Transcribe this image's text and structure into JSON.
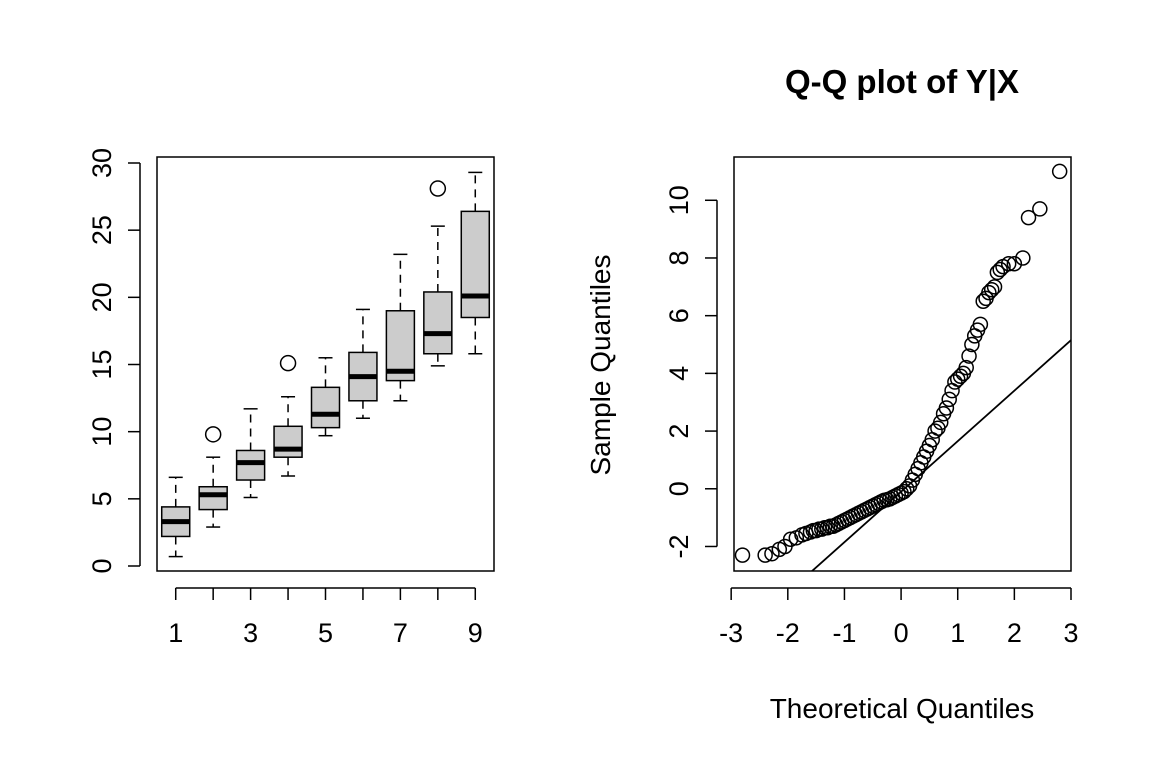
{
  "chart_data": [
    {
      "type": "boxplot",
      "title": "",
      "xlabel": "",
      "ylabel": "",
      "xlim": [
        0.5,
        9.5
      ],
      "ylim": [
        0,
        30
      ],
      "x_ticks": [
        "1",
        "3",
        "5",
        "7",
        "9"
      ],
      "y_ticks": [
        "0",
        "5",
        "10",
        "15",
        "20",
        "25",
        "30"
      ],
      "box_fill": "#cccccc",
      "groups": [
        {
          "category": "1",
          "whisker_low": 0.7,
          "q1": 2.2,
          "median": 3.3,
          "q3": 4.4,
          "whisker_high": 6.6,
          "outliers": []
        },
        {
          "category": "2",
          "whisker_low": 2.9,
          "q1": 4.2,
          "median": 5.3,
          "q3": 5.9,
          "whisker_high": 8.1,
          "outliers": [
            9.8
          ]
        },
        {
          "category": "3",
          "whisker_low": 5.1,
          "q1": 6.4,
          "median": 7.7,
          "q3": 8.6,
          "whisker_high": 11.7,
          "outliers": []
        },
        {
          "category": "4",
          "whisker_low": 6.7,
          "q1": 8.1,
          "median": 8.7,
          "q3": 10.4,
          "whisker_high": 12.6,
          "outliers": [
            15.1
          ]
        },
        {
          "category": "5",
          "whisker_low": 9.7,
          "q1": 10.3,
          "median": 11.3,
          "q3": 13.3,
          "whisker_high": 15.5,
          "outliers": []
        },
        {
          "category": "6",
          "whisker_low": 11.0,
          "q1": 12.3,
          "median": 14.1,
          "q3": 15.9,
          "whisker_high": 19.1,
          "outliers": []
        },
        {
          "category": "7",
          "whisker_low": 12.3,
          "q1": 13.8,
          "median": 14.5,
          "q3": 19.0,
          "whisker_high": 23.2,
          "outliers": []
        },
        {
          "category": "8",
          "whisker_low": 14.9,
          "q1": 15.8,
          "median": 17.3,
          "q3": 20.4,
          "whisker_high": 25.3,
          "outliers": [
            28.1
          ]
        },
        {
          "category": "9",
          "whisker_low": 15.8,
          "q1": 18.5,
          "median": 20.1,
          "q3": 26.4,
          "whisker_high": 29.3,
          "outliers": []
        }
      ]
    },
    {
      "type": "scatter",
      "title": "Q-Q plot of Y|X",
      "xlabel": "Theoretical Quantiles",
      "ylabel": "Sample Quantiles",
      "xlim": [
        -2.95,
        3.0
      ],
      "ylim": [
        -2.85,
        11.5
      ],
      "x_ticks": [
        "-3",
        "-2",
        "-1",
        "0",
        "1",
        "2",
        "3"
      ],
      "y_ticks": [
        "-2",
        "0",
        "2",
        "4",
        "6",
        "8",
        "10"
      ],
      "reference_line": {
        "slope": 1.75,
        "intercept": -0.1
      },
      "points": [
        [
          -2.8,
          -2.3
        ],
        [
          -2.4,
          -2.3
        ],
        [
          -2.28,
          -2.25
        ],
        [
          -2.15,
          -2.1
        ],
        [
          -2.05,
          -2.0
        ],
        [
          -1.95,
          -1.75
        ],
        [
          -1.85,
          -1.7
        ],
        [
          -1.75,
          -1.6
        ],
        [
          -1.68,
          -1.55
        ],
        [
          -1.6,
          -1.5
        ],
        [
          -1.55,
          -1.45
        ],
        [
          -1.5,
          -1.45
        ],
        [
          -1.45,
          -1.4
        ],
        [
          -1.4,
          -1.4
        ],
        [
          -1.35,
          -1.35
        ],
        [
          -1.3,
          -1.35
        ],
        [
          -1.25,
          -1.3
        ],
        [
          -1.2,
          -1.3
        ],
        [
          -1.15,
          -1.25
        ],
        [
          -1.1,
          -1.2
        ],
        [
          -1.05,
          -1.15
        ],
        [
          -1.0,
          -1.1
        ],
        [
          -0.95,
          -1.05
        ],
        [
          -0.9,
          -1.0
        ],
        [
          -0.85,
          -0.95
        ],
        [
          -0.8,
          -0.9
        ],
        [
          -0.75,
          -0.85
        ],
        [
          -0.7,
          -0.8
        ],
        [
          -0.65,
          -0.75
        ],
        [
          -0.6,
          -0.7
        ],
        [
          -0.55,
          -0.65
        ],
        [
          -0.5,
          -0.6
        ],
        [
          -0.45,
          -0.55
        ],
        [
          -0.4,
          -0.5
        ],
        [
          -0.35,
          -0.45
        ],
        [
          -0.3,
          -0.4
        ],
        [
          -0.25,
          -0.38
        ],
        [
          -0.2,
          -0.35
        ],
        [
          -0.15,
          -0.3
        ],
        [
          -0.1,
          -0.25
        ],
        [
          -0.05,
          -0.2
        ],
        [
          0.0,
          -0.15
        ],
        [
          0.05,
          -0.1
        ],
        [
          0.1,
          0.0
        ],
        [
          0.15,
          0.1
        ],
        [
          0.2,
          0.3
        ],
        [
          0.25,
          0.5
        ],
        [
          0.3,
          0.7
        ],
        [
          0.35,
          0.9
        ],
        [
          0.4,
          1.1
        ],
        [
          0.45,
          1.3
        ],
        [
          0.5,
          1.5
        ],
        [
          0.55,
          1.7
        ],
        [
          0.6,
          2.0
        ],
        [
          0.65,
          2.1
        ],
        [
          0.7,
          2.3
        ],
        [
          0.75,
          2.6
        ],
        [
          0.8,
          2.8
        ],
        [
          0.85,
          3.1
        ],
        [
          0.9,
          3.4
        ],
        [
          0.95,
          3.7
        ],
        [
          1.0,
          3.8
        ],
        [
          1.05,
          3.9
        ],
        [
          1.1,
          4.0
        ],
        [
          1.15,
          4.2
        ],
        [
          1.2,
          4.6
        ],
        [
          1.25,
          5.0
        ],
        [
          1.3,
          5.3
        ],
        [
          1.35,
          5.5
        ],
        [
          1.4,
          5.7
        ],
        [
          1.45,
          6.5
        ],
        [
          1.5,
          6.6
        ],
        [
          1.55,
          6.8
        ],
        [
          1.6,
          6.9
        ],
        [
          1.65,
          7.0
        ],
        [
          1.7,
          7.5
        ],
        [
          1.75,
          7.6
        ],
        [
          1.8,
          7.7
        ],
        [
          1.9,
          7.8
        ],
        [
          2.0,
          7.8
        ],
        [
          2.15,
          8.0
        ],
        [
          2.25,
          9.4
        ],
        [
          2.45,
          9.7
        ],
        [
          2.8,
          11.0
        ]
      ]
    }
  ]
}
